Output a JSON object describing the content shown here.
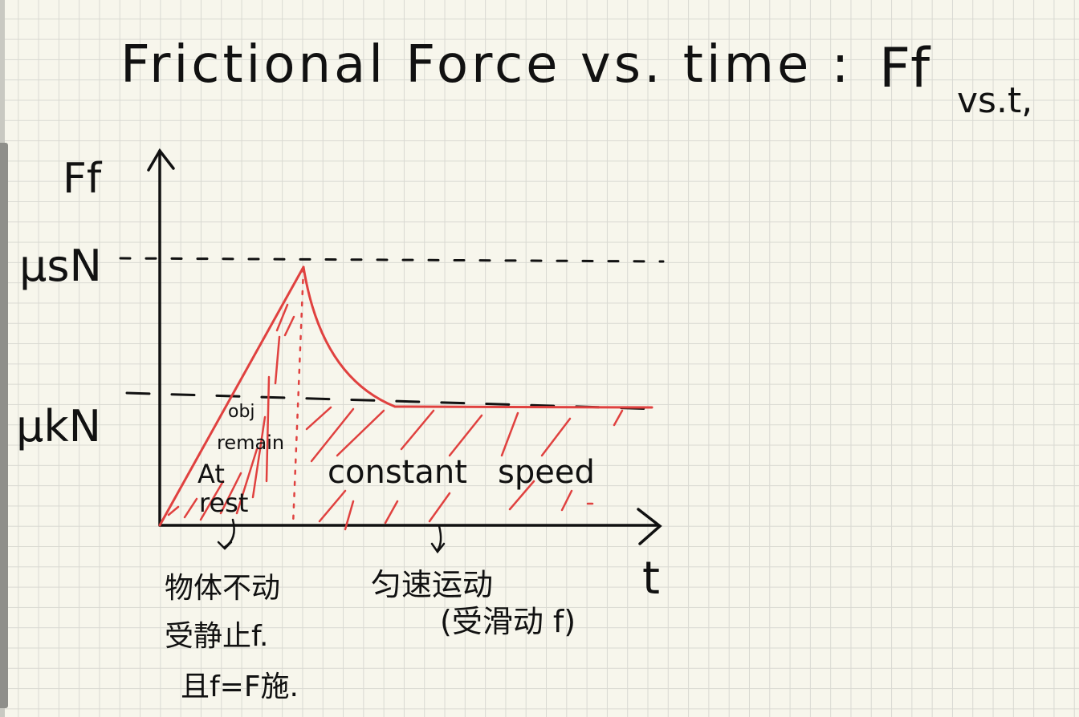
{
  "title": {
    "main": "Frictional Force vs. time :",
    "symbol": "Ff",
    "suffix": "vs.t,"
  },
  "axes": {
    "y_label": "Ff",
    "x_label": "t"
  },
  "levels": {
    "static_max": "μsN",
    "kinetic": "μkN"
  },
  "annotations": {
    "obj": "obj",
    "remain": "remain",
    "at": "At",
    "rest": "rest",
    "constant_speed": "constant   speed",
    "cn_left_1": "物体不动",
    "cn_left_2": "受静止f.",
    "cn_left_3": "且f=F施.",
    "cn_right_1": "匀速运动",
    "cn_right_2": "(受滑动 f)"
  },
  "colors": {
    "ink": "#111111",
    "curve": "#e0413f",
    "paper": "#f7f6ec",
    "grid": "#d9d9d2"
  }
}
